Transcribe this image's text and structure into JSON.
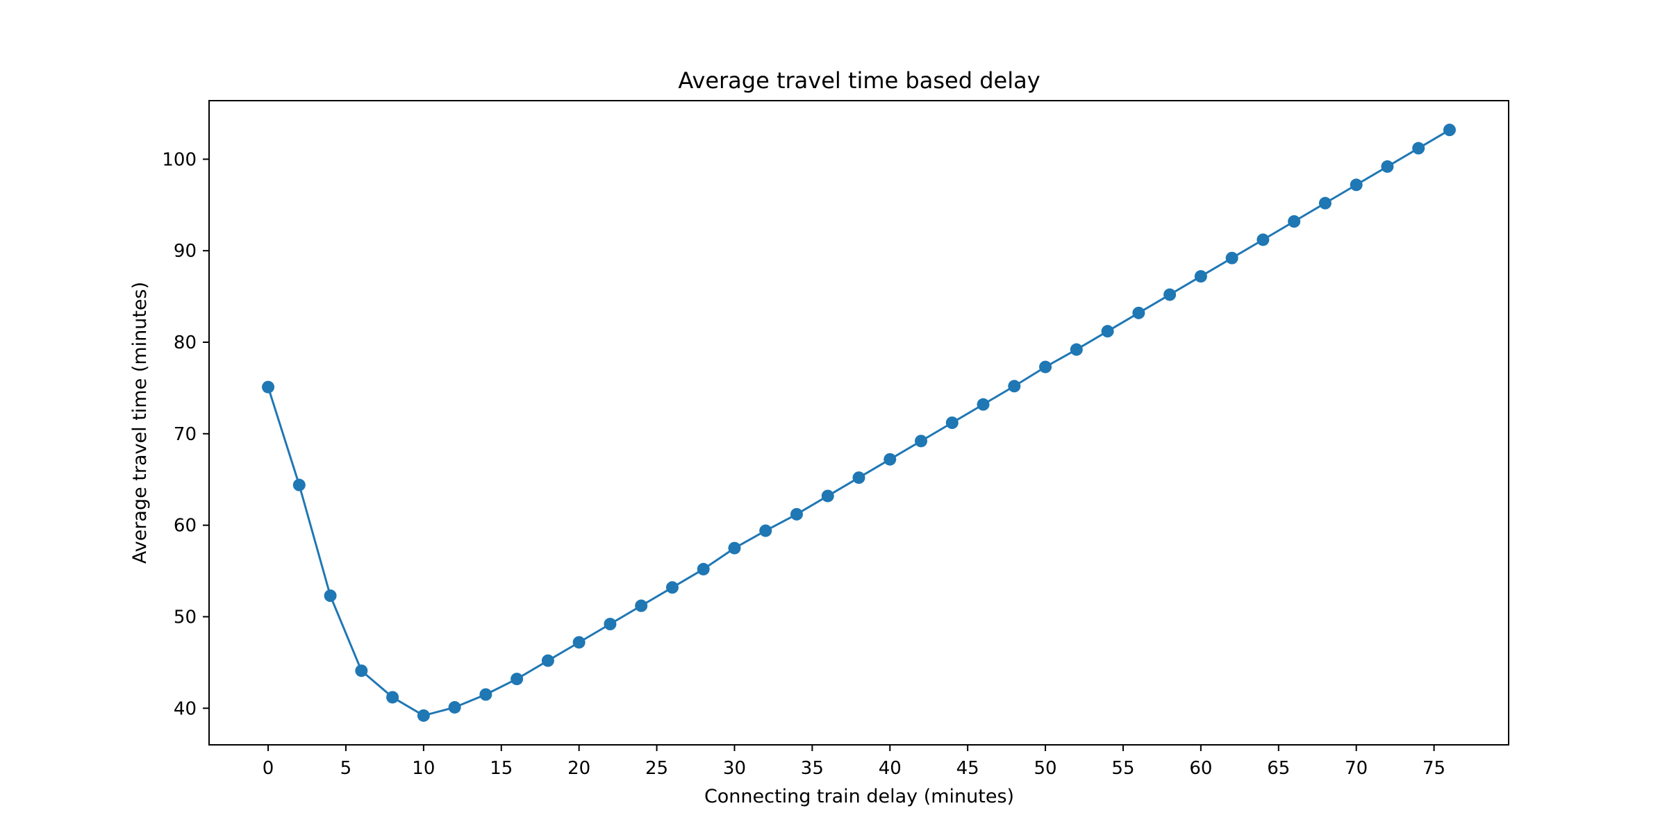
{
  "chart_data": {
    "type": "line",
    "title": "Average travel time based delay",
    "xlabel": "Connecting train delay (minutes)",
    "ylabel": "Average travel time (minutes)",
    "xlim": [
      -3.8,
      79.8
    ],
    "ylim": [
      36.0,
      106.4
    ],
    "xticks": [
      0,
      5,
      10,
      15,
      20,
      25,
      30,
      35,
      40,
      45,
      50,
      55,
      60,
      65,
      70,
      75
    ],
    "yticks": [
      40,
      50,
      60,
      70,
      80,
      90,
      100
    ],
    "grid": false,
    "marker": "circle",
    "color": "#1f77b4",
    "series": [
      {
        "x": [
          0,
          2,
          4,
          6,
          8,
          10,
          12,
          14,
          16,
          18,
          20,
          22,
          24,
          26,
          28,
          30,
          32,
          34,
          36,
          38,
          40,
          42,
          44,
          46,
          48,
          50,
          52,
          54,
          56,
          58,
          60,
          62,
          64,
          66,
          68,
          70,
          72,
          74,
          76
        ],
        "y": [
          75.1,
          64.4,
          52.3,
          44.1,
          41.2,
          39.2,
          40.1,
          41.5,
          43.2,
          45.2,
          47.2,
          49.2,
          51.2,
          53.2,
          55.2,
          57.5,
          59.4,
          61.2,
          63.2,
          65.2,
          67.2,
          69.2,
          71.2,
          73.2,
          75.2,
          77.3,
          79.2,
          81.2,
          83.2,
          85.2,
          87.2,
          89.2,
          91.2,
          93.2,
          95.2,
          97.2,
          99.2,
          101.2,
          103.2
        ]
      }
    ]
  }
}
